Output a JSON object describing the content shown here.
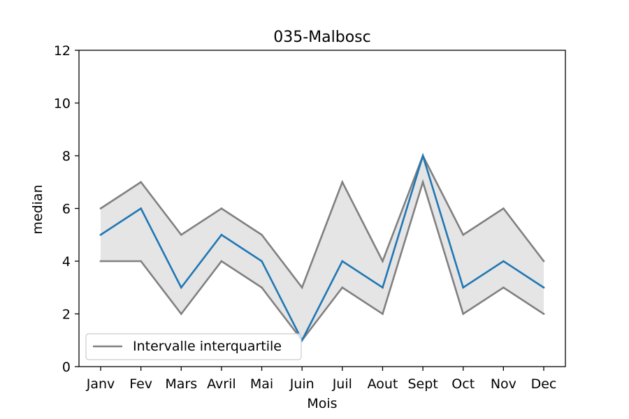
{
  "chart_data": {
    "type": "line",
    "title": "035-Malbosc",
    "xlabel": "Mois",
    "ylabel": "median",
    "categories": [
      "Janv",
      "Fev",
      "Mars",
      "Avril",
      "Mai",
      "Juin",
      "Juil",
      "Aout",
      "Sept",
      "Oct",
      "Nov",
      "Dec"
    ],
    "ylim": [
      0,
      12
    ],
    "yticks": [
      0,
      2,
      4,
      6,
      8,
      10,
      12
    ],
    "series": [
      {
        "values": [
          5,
          6,
          3,
          5,
          4,
          1,
          4,
          3,
          8,
          3,
          4,
          3
        ],
        "color": "#1f77b4"
      },
      {
        "values": [
          6,
          7,
          5,
          6,
          5,
          3,
          7,
          4,
          8,
          5,
          6,
          4
        ],
        "color": "#808080"
      },
      {
        "values": [
          4,
          4,
          2,
          4,
          3,
          1,
          3,
          2,
          7,
          2,
          3,
          2
        ],
        "color": "#808080"
      }
    ],
    "fill_color": "#e5e5e5",
    "legend": {
      "label": "Intervalle interquartile",
      "placement": "lower-left",
      "color": "#808080"
    },
    "grid": false
  }
}
